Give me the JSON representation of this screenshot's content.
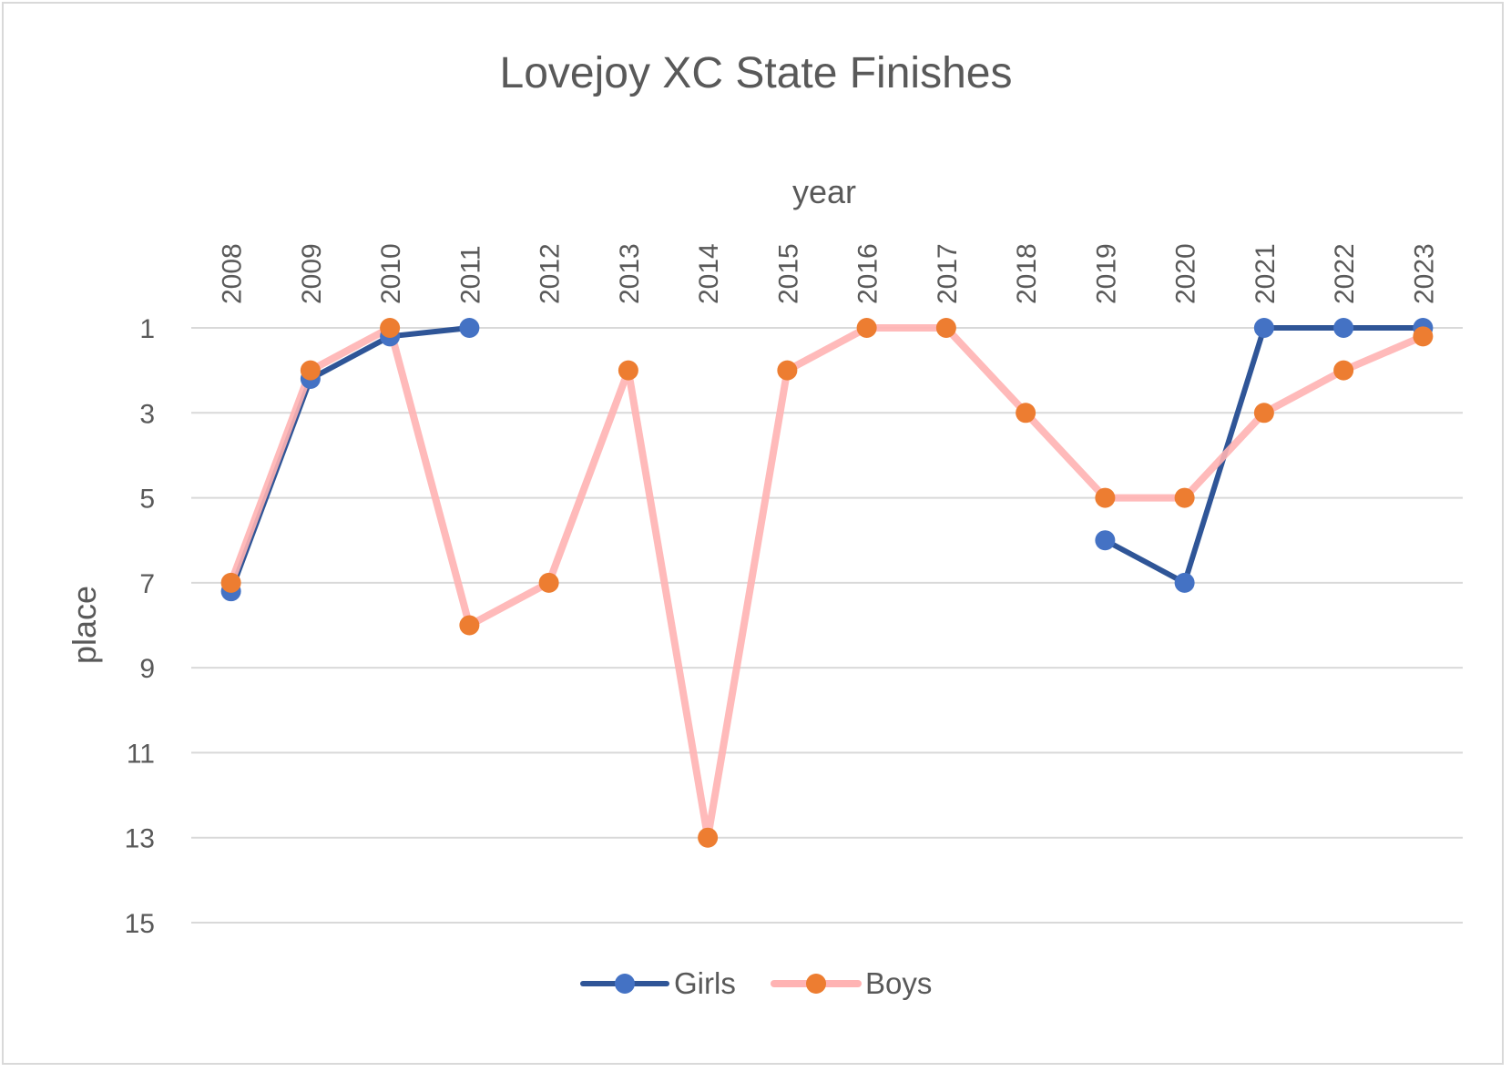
{
  "chart_data": {
    "type": "line",
    "title": "Lovejoy XC State Finishes",
    "xlabel": "year",
    "ylabel": "place",
    "x_axis_position": "top",
    "y_reversed": true,
    "ylim": [
      1,
      15
    ],
    "yticks": [
      1,
      3,
      5,
      7,
      9,
      11,
      13,
      15
    ],
    "grid": true,
    "legend_position": "bottom",
    "categories": [
      "2008",
      "2009",
      "2010",
      "2011",
      "2012",
      "2013",
      "2014",
      "2015",
      "2016",
      "2017",
      "2018",
      "2019",
      "2020",
      "2021",
      "2022",
      "2023"
    ],
    "series": [
      {
        "name": "Girls",
        "line_color": "#2f5597",
        "marker_color": "#4472c4",
        "values": [
          7.2,
          2.2,
          1.2,
          1,
          null,
          null,
          null,
          null,
          null,
          null,
          null,
          6,
          7,
          1,
          1,
          1
        ]
      },
      {
        "name": "Boys",
        "line_color": "#ffb3b3",
        "marker_color": "#ed7d31",
        "values": [
          7,
          2,
          1,
          8,
          7,
          2,
          13,
          2,
          1,
          1,
          3,
          5,
          5,
          3,
          2,
          1.2
        ]
      }
    ]
  }
}
